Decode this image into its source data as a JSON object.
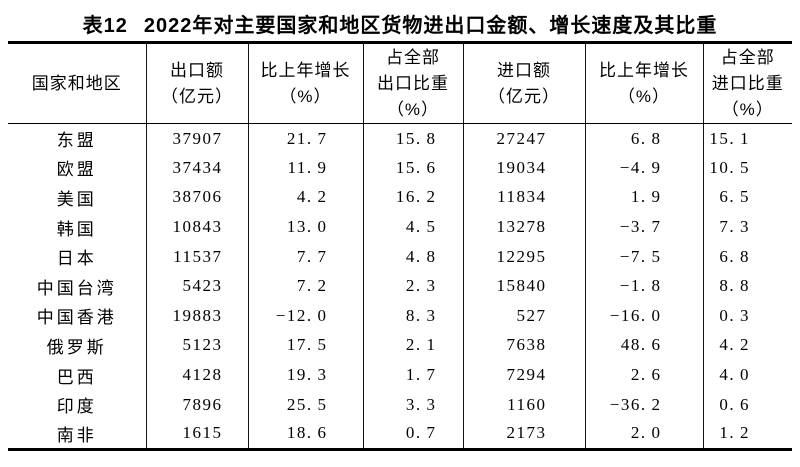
{
  "page": {
    "table_label": "表12",
    "title": "2022年对主要国家和地区货物进出口金额、增长速度及其比重"
  },
  "colors": {
    "background": "#ffffff",
    "ink": "#000000",
    "rule": "#000000"
  },
  "table": {
    "columns": [
      {
        "id": "region",
        "lines": [
          "国家和地区"
        ]
      },
      {
        "id": "export_value",
        "lines": [
          "出口额",
          "（亿元）"
        ]
      },
      {
        "id": "export_growth",
        "lines": [
          "比上年增长",
          "（%）"
        ]
      },
      {
        "id": "export_share",
        "lines": [
          "占全部",
          "出口比重",
          "（%）"
        ]
      },
      {
        "id": "import_value",
        "lines": [
          "进口额",
          "（亿元）"
        ]
      },
      {
        "id": "import_growth",
        "lines": [
          "比上年增长",
          "（%）"
        ]
      },
      {
        "id": "import_share",
        "lines": [
          "占全部",
          "进口比重",
          "（%）"
        ]
      }
    ],
    "rows": [
      {
        "region": "东盟",
        "export_value": "37907",
        "export_growth": "21.7",
        "export_share": "15.8",
        "import_value": "27247",
        "import_growth": "6.8",
        "import_share": "15.1"
      },
      {
        "region": "欧盟",
        "export_value": "37434",
        "export_growth": "11.9",
        "export_share": "15.6",
        "import_value": "19034",
        "import_growth": "-4.9",
        "import_share": "10.5"
      },
      {
        "region": "美国",
        "export_value": "38706",
        "export_growth": "4.2",
        "export_share": "16.2",
        "import_value": "11834",
        "import_growth": "1.9",
        "import_share": "6.5"
      },
      {
        "region": "韩国",
        "export_value": "10843",
        "export_growth": "13.0",
        "export_share": "4.5",
        "import_value": "13278",
        "import_growth": "-3.7",
        "import_share": "7.3"
      },
      {
        "region": "日本",
        "export_value": "11537",
        "export_growth": "7.7",
        "export_share": "4.8",
        "import_value": "12295",
        "import_growth": "-7.5",
        "import_share": "6.8"
      },
      {
        "region": "中国台湾",
        "export_value": "5423",
        "export_growth": "7.2",
        "export_share": "2.3",
        "import_value": "15840",
        "import_growth": "-1.8",
        "import_share": "8.8"
      },
      {
        "region": "中国香港",
        "export_value": "19883",
        "export_growth": "-12.0",
        "export_share": "8.3",
        "import_value": "527",
        "import_growth": "-16.0",
        "import_share": "0.3"
      },
      {
        "region": "俄罗斯",
        "export_value": "5123",
        "export_growth": "17.5",
        "export_share": "2.1",
        "import_value": "7638",
        "import_growth": "48.6",
        "import_share": "4.2"
      },
      {
        "region": "巴西",
        "export_value": "4128",
        "export_growth": "19.3",
        "export_share": "1.7",
        "import_value": "7294",
        "import_growth": "2.6",
        "import_share": "4.0"
      },
      {
        "region": "印度",
        "export_value": "7896",
        "export_growth": "25.5",
        "export_share": "3.3",
        "import_value": "1160",
        "import_growth": "-36.2",
        "import_share": "0.6"
      },
      {
        "region": "南非",
        "export_value": "1615",
        "export_growth": "18.6",
        "export_share": "0.7",
        "import_value": "2173",
        "import_growth": "2.0",
        "import_share": "1.2"
      }
    ]
  }
}
